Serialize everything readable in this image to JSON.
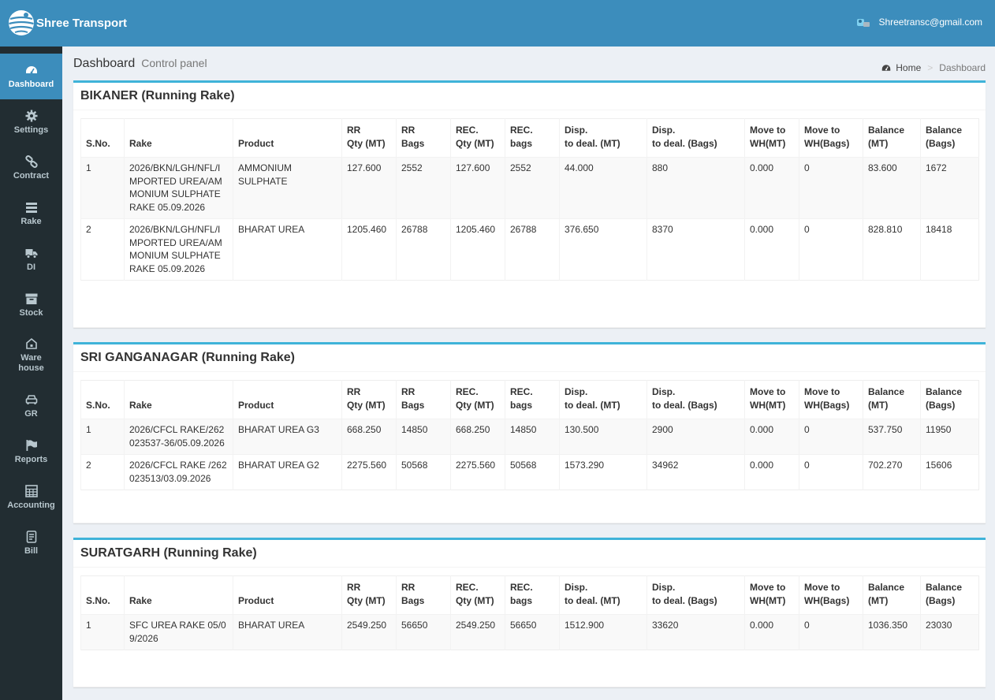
{
  "app": {
    "brand": "Shree Transport",
    "user_email": "Shreetransc@gmail.com"
  },
  "sidebar": {
    "items": [
      {
        "label": "Dashboard",
        "icon": "dashboard-icon"
      },
      {
        "label": "Settings",
        "icon": "gear-icon"
      },
      {
        "label": "Contract",
        "icon": "link-icon"
      },
      {
        "label": "Rake",
        "icon": "list-icon"
      },
      {
        "label": "DI",
        "icon": "truck-icon"
      },
      {
        "label": "Stock",
        "icon": "archive-icon"
      },
      {
        "label": "Ware\nhouse",
        "icon": "home-icon"
      },
      {
        "label": "GR",
        "icon": "car-icon"
      },
      {
        "label": "Reports",
        "icon": "flag-icon"
      },
      {
        "label": "Accounting",
        "icon": "calculator-icon"
      },
      {
        "label": "Bill",
        "icon": "bill-icon"
      }
    ]
  },
  "header": {
    "title": "Dashboard",
    "subtitle": "Control panel"
  },
  "breadcrumb": {
    "home": "Home",
    "current": "Dashboard"
  },
  "columns": [
    "S.No.",
    "Rake",
    "Product",
    "RR\nQty (MT)",
    "RR\nBags",
    "REC.\nQty (MT)",
    "REC.\nbags",
    "Disp.\nto deal. (MT)",
    "Disp.\nto deal. (Bags)",
    "Move to\nWH(MT)",
    "Move to\nWH(Bags)",
    "Balance\n(MT)",
    "Balance\n(Bags)"
  ],
  "sections": [
    {
      "title": "BIKANER (Running Rake)",
      "rows": [
        [
          "1",
          "2026/BKN/LGH/NFL/IMPORTED UREA/AMMONIUM SULPHATE RAKE 05.09.2026",
          "AMMONIUM SULPHATE",
          "127.600",
          "2552",
          "127.600",
          "2552",
          "44.000",
          "880",
          "0.000",
          "0",
          "83.600",
          "1672"
        ],
        [
          "2",
          "2026/BKN/LGH/NFL/IMPORTED UREA/AMMONIUM SULPHATE RAKE 05.09.2026",
          "BHARAT UREA",
          "1205.460",
          "26788",
          "1205.460",
          "26788",
          "376.650",
          "8370",
          "0.000",
          "0",
          "828.810",
          "18418"
        ]
      ]
    },
    {
      "title": "SRI GANGANAGAR (Running Rake)",
      "rows": [
        [
          "1",
          "2026/CFCL RAKE/262023537-36/05.09.2026",
          "BHARAT UREA G3",
          "668.250",
          "14850",
          "668.250",
          "14850",
          "130.500",
          "2900",
          "0.000",
          "0",
          "537.750",
          "11950"
        ],
        [
          "2",
          "2026/CFCL RAKE /262023513/03.09.2026",
          "BHARAT UREA G2",
          "2275.560",
          "50568",
          "2275.560",
          "50568",
          "1573.290",
          "34962",
          "0.000",
          "0",
          "702.270",
          "15606"
        ]
      ]
    },
    {
      "title": "SURATGARH (Running Rake)",
      "rows": [
        [
          "1",
          "SFC UREA RAKE 05/09/2026",
          "BHARAT UREA",
          "2549.250",
          "56650",
          "2549.250",
          "56650",
          "1512.900",
          "33620",
          "0.000",
          "0",
          "1036.350",
          "23030"
        ]
      ]
    }
  ]
}
